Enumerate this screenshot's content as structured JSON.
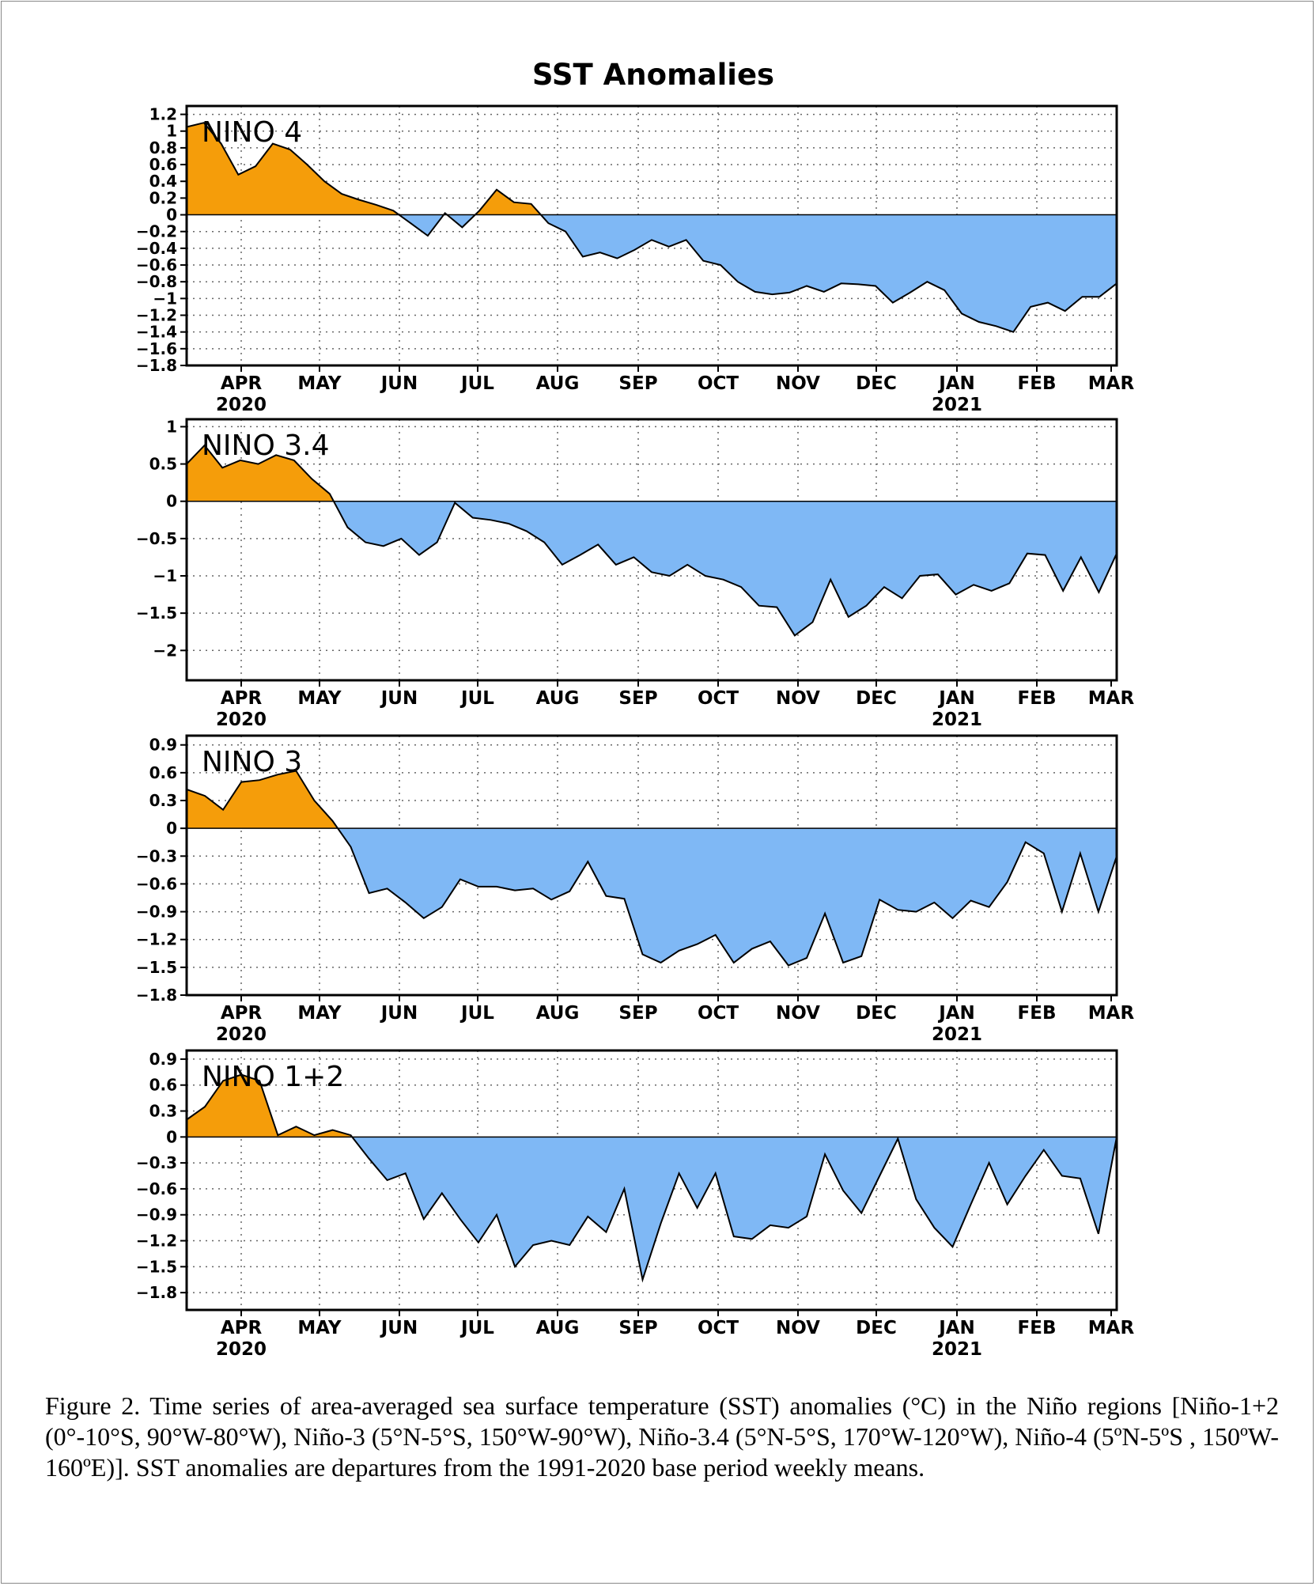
{
  "figure": {
    "title": "SST Anomalies",
    "caption": "Figure 2. Time series of area-averaged sea surface temperature (SST) anomalies (°C) in the Niño regions [Niño-1+2 (0°-10°S, 90°W-80°W), Niño-3 (5°N-5°S, 150°W-90°W), Niño-3.4 (5°N-5°S, 170°W-120°W), Niño-4 (5ºN-5ºS , 150ºW-160ºE)]. SST anomalies are departures from the 1991-2020 base period weekly means.",
    "positive_color": "#f59d0a",
    "negative_color": "#7fb8f5"
  },
  "chart_data": [
    {
      "type": "area",
      "panel": "NINO 4",
      "x_labels": [
        "APR",
        "MAY",
        "JUN",
        "JUL",
        "AUG",
        "SEP",
        "OCT",
        "NOV",
        "DEC",
        "JAN",
        "FEB",
        "MAR"
      ],
      "x_year_labels": [
        "2020",
        "2021"
      ],
      "ylim": [
        -1.8,
        1.3
      ],
      "yticks": [
        1.2,
        1,
        0.8,
        0.6,
        0.4,
        0.2,
        0,
        -0.2,
        -0.4,
        -0.6,
        -0.8,
        -1,
        -1.2,
        -1.4,
        -1.6,
        -1.8
      ],
      "grid": true,
      "weekly_values": [
        1.05,
        1.1,
        0.85,
        0.48,
        0.58,
        0.85,
        0.78,
        0.6,
        0.4,
        0.25,
        0.18,
        0.12,
        0.05,
        -0.1,
        -0.25,
        0.02,
        -0.15,
        0.05,
        0.3,
        0.15,
        0.13,
        -0.1,
        -0.2,
        -0.5,
        -0.45,
        -0.52,
        -0.42,
        -0.3,
        -0.38,
        -0.3,
        -0.55,
        -0.6,
        -0.8,
        -0.92,
        -0.95,
        -0.93,
        -0.85,
        -0.92,
        -0.82,
        -0.83,
        -0.85,
        -1.05,
        -0.93,
        -0.8,
        -0.9,
        -1.18,
        -1.28,
        -1.33,
        -1.4,
        -1.1,
        -1.05,
        -1.15,
        -0.98,
        -0.98,
        -0.82
      ]
    },
    {
      "type": "area",
      "panel": "NINO 3.4",
      "x_labels": [
        "APR",
        "MAY",
        "JUN",
        "JUL",
        "AUG",
        "SEP",
        "OCT",
        "NOV",
        "DEC",
        "JAN",
        "FEB",
        "MAR"
      ],
      "x_year_labels": [
        "2020",
        "2021"
      ],
      "ylim": [
        -2.4,
        1.1
      ],
      "yticks": [
        1,
        0.5,
        0,
        -0.5,
        -1,
        -1.5,
        -2
      ],
      "grid": true,
      "weekly_values": [
        0.5,
        0.75,
        0.45,
        0.55,
        0.5,
        0.62,
        0.55,
        0.3,
        0.1,
        -0.35,
        -0.55,
        -0.6,
        -0.5,
        -0.72,
        -0.55,
        -0.02,
        -0.22,
        -0.25,
        -0.3,
        -0.4,
        -0.55,
        -0.85,
        -0.72,
        -0.58,
        -0.85,
        -0.75,
        -0.95,
        -1.0,
        -0.85,
        -1.0,
        -1.05,
        -1.15,
        -1.4,
        -1.42,
        -1.8,
        -1.62,
        -1.05,
        -1.55,
        -1.4,
        -1.15,
        -1.3,
        -1.0,
        -0.98,
        -1.25,
        -1.12,
        -1.2,
        -1.1,
        -0.7,
        -0.72,
        -1.2,
        -0.75,
        -1.22,
        -0.7
      ]
    },
    {
      "type": "area",
      "panel": "NINO 3",
      "x_labels": [
        "APR",
        "MAY",
        "JUN",
        "JUL",
        "AUG",
        "SEP",
        "OCT",
        "NOV",
        "DEC",
        "JAN",
        "FEB",
        "MAR"
      ],
      "x_year_labels": [
        "2020",
        "2021"
      ],
      "ylim": [
        -1.8,
        1.0
      ],
      "yticks": [
        0.9,
        0.6,
        0.3,
        0,
        -0.3,
        -0.6,
        -0.9,
        -1.2,
        -1.5,
        -1.8
      ],
      "grid": true,
      "weekly_values": [
        0.42,
        0.35,
        0.2,
        0.5,
        0.52,
        0.58,
        0.62,
        0.3,
        0.08,
        -0.2,
        -0.7,
        -0.65,
        -0.8,
        -0.97,
        -0.85,
        -0.55,
        -0.63,
        -0.63,
        -0.67,
        -0.65,
        -0.77,
        -0.68,
        -0.36,
        -0.73,
        -0.76,
        -1.36,
        -1.45,
        -1.32,
        -1.25,
        -1.15,
        -1.45,
        -1.3,
        -1.22,
        -1.48,
        -1.4,
        -0.92,
        -1.45,
        -1.38,
        -0.77,
        -0.88,
        -0.9,
        -0.8,
        -0.97,
        -0.78,
        -0.85,
        -0.58,
        -0.15,
        -0.27,
        -0.9,
        -0.27,
        -0.9,
        -0.3
      ]
    },
    {
      "type": "area",
      "panel": "NINO 1+2",
      "x_labels": [
        "APR",
        "MAY",
        "JUN",
        "JUL",
        "AUG",
        "SEP",
        "OCT",
        "NOV",
        "DEC",
        "JAN",
        "FEB",
        "MAR"
      ],
      "x_year_labels": [
        "2020",
        "2021"
      ],
      "ylim": [
        -2.0,
        1.0
      ],
      "yticks": [
        0.9,
        0.6,
        0.3,
        0,
        -0.3,
        -0.6,
        -0.9,
        -1.2,
        -1.5,
        -1.8
      ],
      "grid": true,
      "weekly_values": [
        0.2,
        0.35,
        0.65,
        0.72,
        0.65,
        0.02,
        0.12,
        0.02,
        0.08,
        0.02,
        -0.25,
        -0.5,
        -0.42,
        -0.95,
        -0.65,
        -0.95,
        -1.22,
        -0.9,
        -1.5,
        -1.25,
        -1.2,
        -1.25,
        -0.92,
        -1.1,
        -0.6,
        -1.65,
        -1.0,
        -0.42,
        -0.82,
        -0.42,
        -1.15,
        -1.18,
        -1.02,
        -1.05,
        -0.92,
        -0.2,
        -0.62,
        -0.88,
        -0.45,
        -0.02,
        -0.72,
        -1.05,
        -1.27,
        -0.78,
        -0.3,
        -0.78,
        -0.45,
        -0.15,
        -0.45,
        -0.48,
        -1.12,
        0.0
      ]
    }
  ]
}
